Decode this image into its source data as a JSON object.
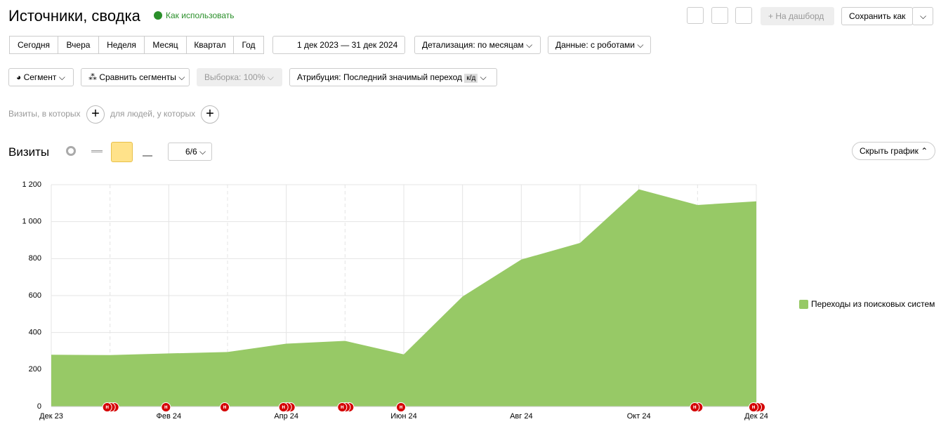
{
  "header": {
    "title": "Источники, сводка",
    "help": "Как использовать",
    "dashboard": "На дашборд",
    "save": "Сохранить как"
  },
  "periods": [
    "Сегодня",
    "Вчера",
    "Неделя",
    "Месяц",
    "Квартал",
    "Год"
  ],
  "date_range": "1 дек 2023 — 31 дек 2024",
  "detail": "Детализация: по месяцам",
  "robots": "Данные: с роботами",
  "segment": "Сегмент",
  "compare": "Сравнить сегменты",
  "sample": "Выборка: 100%",
  "attribution": "Атрибуция: Последний значимый переход",
  "attribution_badge": "к/д",
  "filter_visits": "Визиты, в которых",
  "filter_people": "для людей, у которых",
  "metric": "Визиты",
  "annotations_count": "6/6",
  "hide_chart": "Скрыть график",
  "annotation_label": "н",
  "chart_data": {
    "type": "area",
    "categories": [
      "Дек 23",
      null,
      "Фев 24",
      null,
      "Апр 24",
      null,
      "Июн 24",
      null,
      "Авг 24",
      null,
      "Окт 24",
      null,
      "Дек 24"
    ],
    "series": [
      {
        "name": "Переходы из поисковых систем",
        "color": "#97c966",
        "values": [
          280,
          278,
          287,
          295,
          340,
          355,
          282,
          595,
          795,
          885,
          1175,
          1090,
          1110
        ]
      }
    ],
    "ylim": [
      0,
      1200
    ],
    "yticks": [
      0,
      200,
      400,
      600,
      800,
      {
        "value": 1000,
        "label": "1 000"
      },
      {
        "value": 1200,
        "label": "1 200"
      }
    ],
    "grid": true
  }
}
